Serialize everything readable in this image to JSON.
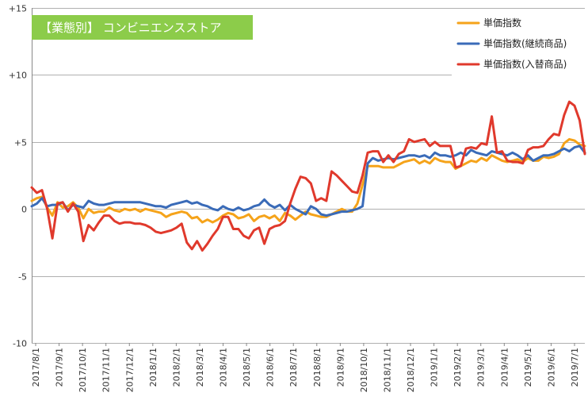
{
  "chart_data": {
    "type": "line",
    "title": "【業態別】 コンビニエンスストア",
    "title_bg": "#8ccc4a",
    "title_color": "#ffffff",
    "xlabel": "",
    "ylabel": "",
    "ylim": [
      -10,
      15
    ],
    "yticks": [
      15,
      10,
      5,
      0,
      -5,
      -10
    ],
    "ytick_labels": [
      "+15",
      "+10",
      "+5",
      "0",
      "-5",
      "-10"
    ],
    "grid": true,
    "legend": "top-right",
    "x_tick_labels": [
      "2017/8/1",
      "2017/9/1",
      "2017/10/1",
      "2017/11/1",
      "2017/12/1",
      "2018/1/1",
      "2018/2/1",
      "2018/3/1",
      "2018/4/1",
      "2018/5/1",
      "2018/6/1",
      "2018/7/1",
      "2018/8/1",
      "2018/9/1",
      "2018/10/1",
      "2018/11/1",
      "2018/12/1",
      "2019/1/1",
      "2019/2/1",
      "2019/3/1",
      "2019/4/1",
      "2019/5/1",
      "2019/6/1",
      "2019/7/1"
    ],
    "series": [
      {
        "name": "単価指数",
        "color": "#f5a31a",
        "values": [
          0.6,
          0.8,
          0.9,
          0.1,
          -0.5,
          0.5,
          0.1,
          0.2,
          0.5,
          0.1,
          -0.7,
          0.0,
          -0.3,
          -0.2,
          -0.2,
          0.1,
          -0.1,
          -0.2,
          0.0,
          -0.1,
          0.0,
          -0.2,
          0.0,
          -0.1,
          -0.2,
          -0.3,
          -0.6,
          -0.4,
          -0.3,
          -0.2,
          -0.3,
          -0.7,
          -0.6,
          -1.0,
          -0.8,
          -1.0,
          -0.8,
          -0.5,
          -0.3,
          -0.4,
          -0.7,
          -0.6,
          -0.4,
          -0.9,
          -0.6,
          -0.5,
          -0.7,
          -0.5,
          -0.9,
          -0.3,
          -0.5,
          -0.8,
          -0.5,
          -0.2,
          -0.4,
          -0.5,
          -0.6,
          -0.6,
          -0.4,
          -0.2,
          0.0,
          -0.2,
          -0.2,
          0.4,
          1.8,
          3.2,
          3.2,
          3.2,
          3.1,
          3.1,
          3.1,
          3.3,
          3.5,
          3.6,
          3.7,
          3.4,
          3.6,
          3.4,
          3.8,
          3.6,
          3.5,
          3.5,
          3.0,
          3.2,
          3.4,
          3.6,
          3.5,
          3.8,
          3.6,
          4.0,
          3.8,
          3.6,
          3.5,
          3.6,
          3.7,
          3.5,
          3.8,
          3.6,
          3.6,
          3.9,
          3.8,
          3.9,
          4.1,
          4.9,
          5.2,
          5.1,
          4.8,
          4.7
        ]
      },
      {
        "name": "単価指数(継続商品)",
        "color": "#3a6bb8",
        "values": [
          0.2,
          0.4,
          0.8,
          0.2,
          0.3,
          0.3,
          0.5,
          -0.1,
          0.3,
          0.2,
          0.1,
          0.6,
          0.4,
          0.3,
          0.3,
          0.4,
          0.5,
          0.5,
          0.5,
          0.5,
          0.5,
          0.5,
          0.4,
          0.3,
          0.2,
          0.2,
          0.1,
          0.3,
          0.4,
          0.5,
          0.6,
          0.4,
          0.5,
          0.3,
          0.2,
          0.0,
          -0.1,
          0.2,
          0.0,
          -0.1,
          0.1,
          -0.1,
          0.0,
          0.2,
          0.3,
          0.7,
          0.3,
          0.1,
          0.3,
          -0.1,
          0.3,
          0.0,
          -0.2,
          -0.4,
          0.2,
          0.0,
          -0.4,
          -0.5,
          -0.4,
          -0.3,
          -0.2,
          -0.2,
          -0.1,
          0.0,
          0.2,
          3.4,
          3.8,
          3.6,
          3.7,
          3.8,
          3.7,
          3.8,
          3.9,
          4.0,
          4.0,
          3.9,
          4.0,
          3.8,
          4.2,
          4.0,
          4.0,
          3.9,
          4.0,
          4.2,
          4.0,
          4.4,
          4.2,
          4.1,
          4.0,
          4.3,
          4.2,
          4.1,
          4.0,
          4.2,
          4.0,
          3.7,
          4.0,
          3.6,
          3.8,
          4.0,
          4.0,
          4.1,
          4.3,
          4.5,
          4.3,
          4.6,
          4.7,
          4.2
        ]
      },
      {
        "name": "単価指数(入替商品)",
        "color": "#e0392c",
        "values": [
          1.6,
          1.2,
          1.4,
          0.0,
          -2.2,
          0.4,
          0.5,
          -0.2,
          0.4,
          -0.2,
          -2.4,
          -1.2,
          -1.6,
          -1.0,
          -0.5,
          -0.5,
          -0.9,
          -1.1,
          -1.0,
          -1.0,
          -1.1,
          -1.1,
          -1.2,
          -1.4,
          -1.7,
          -1.8,
          -1.7,
          -1.6,
          -1.4,
          -1.1,
          -2.5,
          -3.0,
          -2.4,
          -3.1,
          -2.6,
          -2.0,
          -1.5,
          -0.6,
          -0.6,
          -1.5,
          -1.5,
          -2.0,
          -2.2,
          -1.6,
          -1.4,
          -2.6,
          -1.5,
          -1.3,
          -1.2,
          -0.9,
          0.4,
          1.5,
          2.4,
          2.3,
          1.9,
          0.6,
          0.8,
          0.6,
          2.8,
          2.5,
          2.1,
          1.7,
          1.3,
          1.2,
          2.5,
          4.2,
          4.3,
          4.3,
          3.5,
          4.0,
          3.5,
          4.1,
          4.3,
          5.2,
          5.0,
          5.1,
          5.2,
          4.7,
          5.0,
          4.7,
          4.7,
          4.7,
          3.1,
          3.2,
          4.5,
          4.6,
          4.5,
          4.9,
          4.8,
          6.9,
          4.2,
          4.3,
          3.6,
          3.5,
          3.5,
          3.4,
          4.4,
          4.6,
          4.6,
          4.7,
          5.2,
          5.6,
          5.5,
          7.0,
          8.0,
          7.7,
          6.6,
          4.1
        ]
      }
    ]
  }
}
